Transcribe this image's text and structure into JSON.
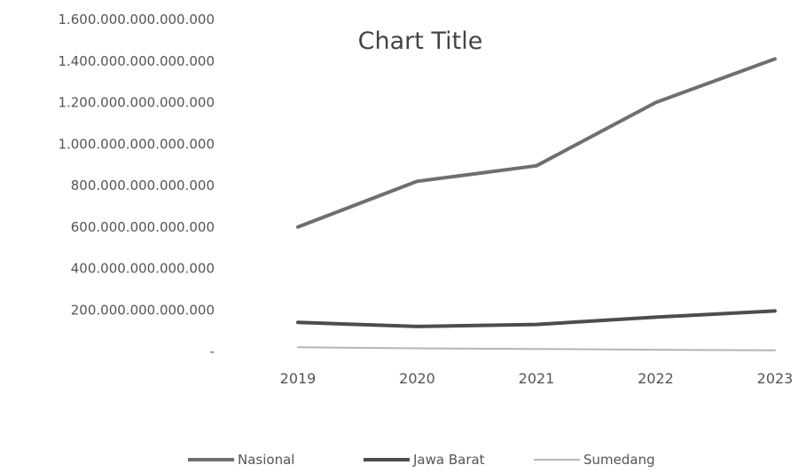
{
  "chart_data": {
    "type": "line",
    "title": "Chart Title",
    "xlabel": "",
    "ylabel": "",
    "categories": [
      "2019",
      "2020",
      "2021",
      "2022",
      "2023"
    ],
    "ylim": [
      0,
      1600000000000000
    ],
    "yticks": [
      0,
      200000000000000,
      400000000000000,
      600000000000000,
      800000000000000,
      1000000000000000,
      1200000000000000,
      1400000000000000,
      1600000000000000
    ],
    "ytick_labels": [
      "-",
      "200.000.000.000.000",
      "400.000.000.000.000",
      "600.000.000.000.000",
      "800.000.000.000.000",
      "1.000.000.000.000.000",
      "1.200.000.000.000.000",
      "1.400.000.000.000.000",
      "1.600.000.000.000.000"
    ],
    "grid": false,
    "legend_position": "bottom",
    "series": [
      {
        "name": "Nasional",
        "color": "#6f6f6f",
        "values": [
          600000000000000,
          820000000000000,
          895000000000000,
          1200000000000000,
          1410000000000000
        ]
      },
      {
        "name": "Jawa Barat",
        "color": "#4d4d4d",
        "values": [
          140000000000000,
          120000000000000,
          130000000000000,
          165000000000000,
          195000000000000
        ]
      },
      {
        "name": "Sumedang",
        "color": "#b5b5b5",
        "values": [
          20000000000000,
          15000000000000,
          12000000000000,
          8000000000000,
          5000000000000
        ]
      }
    ]
  }
}
